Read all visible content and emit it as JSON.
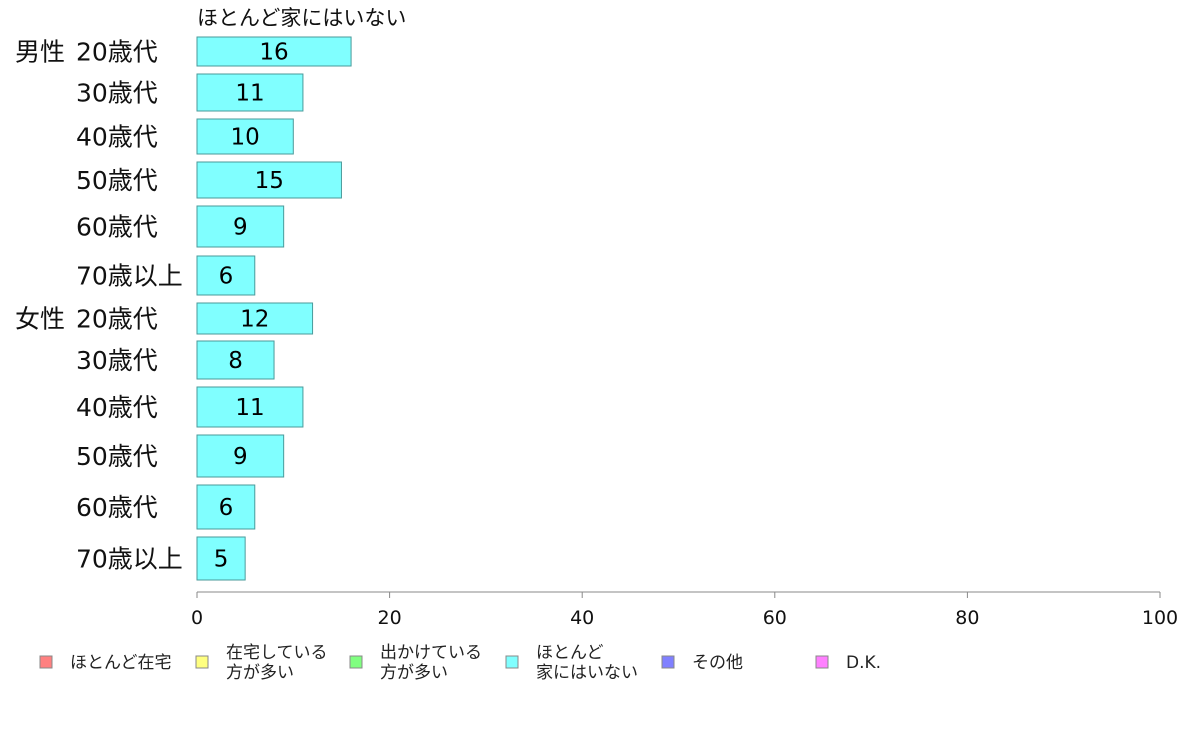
{
  "chart_data": {
    "type": "bar",
    "orientation": "horizontal",
    "series_title": "ほとんど家にはいない",
    "groups": [
      {
        "label": "男性",
        "start": 0
      },
      {
        "label": "女性",
        "start": 6
      }
    ],
    "categories": [
      "20歳代",
      "30歳代",
      "40歳代",
      "50歳代",
      "60歳代",
      "70歳以上",
      "20歳代",
      "30歳代",
      "40歳代",
      "50歳代",
      "60歳代",
      "70歳以上"
    ],
    "series": [
      {
        "name": "ほとんど家にはいない",
        "values": [
          16,
          11,
          10,
          15,
          9,
          6,
          12,
          8,
          11,
          9,
          6,
          5
        ]
      }
    ],
    "xlim": [
      0,
      100
    ],
    "xticks": [
      "0",
      "20",
      "40",
      "60",
      "80",
      "100"
    ],
    "grid": false,
    "bar_color": "#80ffff",
    "bar_stroke": "#4a9a9a",
    "legend": {
      "placement": "bottom",
      "items": [
        {
          "lines": [
            "ほとんど在宅"
          ],
          "color": "#ff8080",
          "icon": "legend-swatch-icon"
        },
        {
          "lines": [
            "在宅している",
            "方が多い"
          ],
          "color": "#ffff80",
          "icon": "legend-swatch-icon"
        },
        {
          "lines": [
            "出かけている",
            "方が多い"
          ],
          "color": "#80ff80",
          "icon": "legend-swatch-icon"
        },
        {
          "lines": [
            "ほとんど",
            "家にはいない"
          ],
          "color": "#80ffff",
          "icon": "legend-swatch-icon"
        },
        {
          "lines": [
            "その他"
          ],
          "color": "#8080ff",
          "icon": "legend-swatch-icon"
        },
        {
          "lines": [
            "D.K."
          ],
          "color": "#ff80ff",
          "icon": "legend-swatch-icon"
        }
      ]
    }
  }
}
